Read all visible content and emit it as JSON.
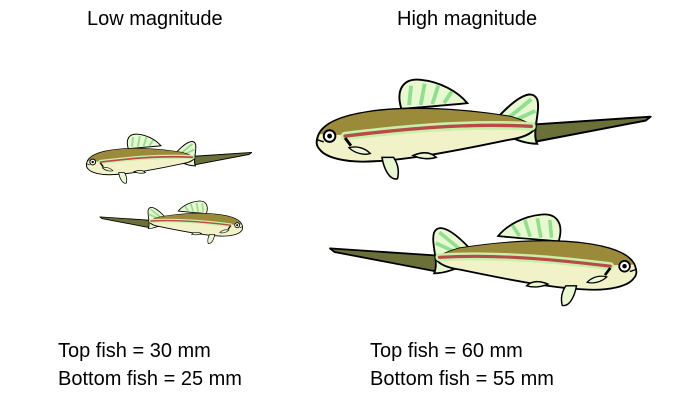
{
  "headings": {
    "low": "Low magnitude",
    "high": "High magnitude"
  },
  "captions": {
    "low_top": "Top fish = 30 mm",
    "low_bottom": "Bottom fish = 25 mm",
    "high_top": "Top fish = 60 mm",
    "high_bottom": "Bottom fish = 55 mm"
  },
  "colors": {
    "back": "#9a8a3a",
    "stripe": "#b84a4a",
    "glow": "#c8f0a8",
    "belly": "#f2f2c8",
    "fin": "#e8f8d0",
    "fin_ray": "#8ee08e",
    "tail": "#6a7038"
  }
}
